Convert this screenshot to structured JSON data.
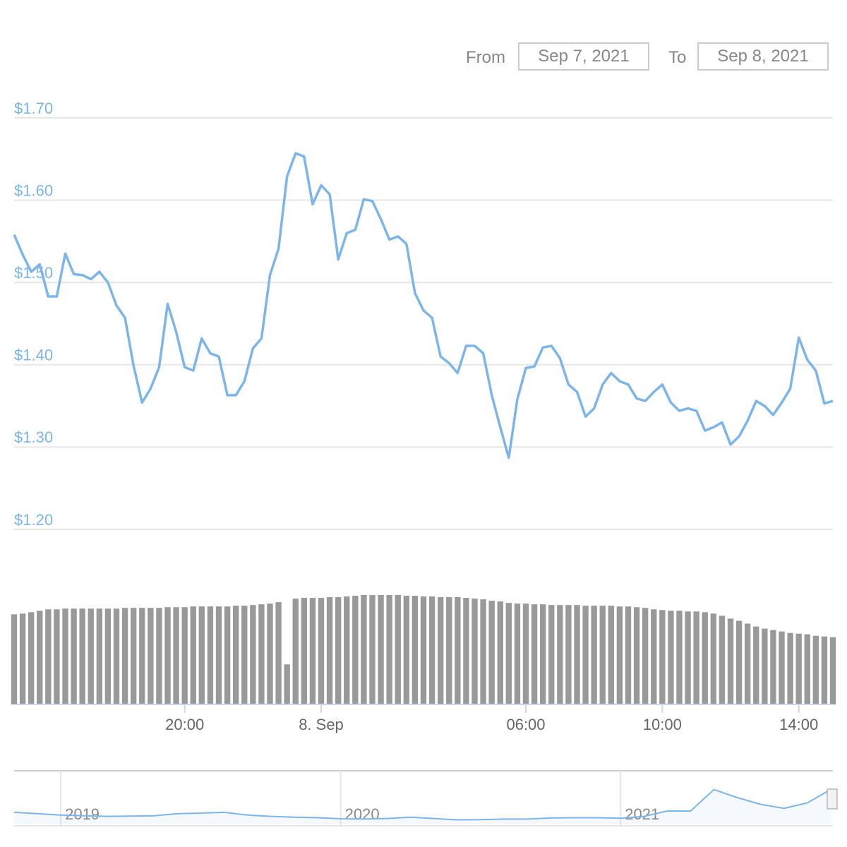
{
  "range_selector": {
    "from_label": "From",
    "from": "Sep 7, 2021",
    "to_label": "To",
    "to": "Sep 8, 2021"
  },
  "chart_data": [
    {
      "type": "line",
      "color": "#7cb5ec",
      "grid": true,
      "values": [
        1.558,
        1.534,
        1.513,
        1.522,
        1.483,
        1.483,
        1.535,
        1.51,
        1.509,
        1.504,
        1.513,
        1.5,
        1.472,
        1.457,
        1.399,
        1.354,
        1.371,
        1.397,
        1.474,
        1.44,
        1.397,
        1.393,
        1.432,
        1.414,
        1.41,
        1.363,
        1.363,
        1.38,
        1.42,
        1.432,
        1.509,
        1.541,
        1.629,
        1.657,
        1.653,
        1.595,
        1.618,
        1.607,
        1.528,
        1.56,
        1.564,
        1.601,
        1.599,
        1.577,
        1.552,
        1.556,
        1.547,
        1.487,
        1.466,
        1.457,
        1.41,
        1.402,
        1.39,
        1.423,
        1.423,
        1.414,
        1.363,
        1.324,
        1.287,
        1.358,
        1.396,
        1.398,
        1.421,
        1.423,
        1.408,
        1.376,
        1.367,
        1.337,
        1.347,
        1.376,
        1.39,
        1.38,
        1.376,
        1.359,
        1.356,
        1.367,
        1.376,
        1.354,
        1.344,
        1.347,
        1.344,
        1.32,
        1.324,
        1.33,
        1.303,
        1.313,
        1.332,
        1.356,
        1.35,
        1.339,
        1.354,
        1.371,
        1.433,
        1.406,
        1.393,
        1.353,
        1.356
      ],
      "volume": [
        126,
        127,
        129,
        131,
        133,
        133,
        134,
        134,
        134,
        134,
        134,
        134,
        134,
        135,
        135,
        135,
        135,
        135,
        136,
        136,
        136,
        137,
        137,
        137,
        137,
        137,
        138,
        138,
        139,
        140,
        141,
        143,
        56,
        148,
        149,
        149,
        149,
        150,
        150,
        151,
        152,
        153,
        153,
        153,
        153,
        153,
        152,
        152,
        151,
        151,
        150,
        150,
        150,
        149,
        148,
        147,
        145,
        144,
        142,
        141,
        141,
        140,
        140,
        139,
        139,
        139,
        139,
        138,
        138,
        138,
        138,
        137,
        137,
        136,
        135,
        133,
        132,
        131,
        131,
        130,
        130,
        129,
        127,
        124,
        120,
        117,
        113,
        109,
        106,
        104,
        102,
        100,
        99,
        98,
        96,
        95,
        94
      ],
      "volume_color": "#999999",
      "xlim": [
        0,
        96
      ],
      "xticks": [
        {
          "value": 20,
          "label": "20:00"
        },
        {
          "value": 36,
          "label": "8. Sep"
        },
        {
          "value": 60,
          "label": "06:00"
        },
        {
          "value": 76,
          "label": "10:00"
        },
        {
          "value": 92,
          "label": "14:00"
        }
      ],
      "ylim": [
        1.2,
        1.7
      ],
      "yticks": [
        {
          "value": 1.2,
          "label": "$1.20"
        },
        {
          "value": 1.3,
          "label": "$1.30"
        },
        {
          "value": 1.4,
          "label": "$1.40"
        },
        {
          "value": 1.5,
          "label": "$1.50"
        },
        {
          "value": 1.6,
          "label": "$1.60"
        },
        {
          "value": 1.7,
          "label": "$1.70"
        }
      ]
    },
    {
      "type": "navigator",
      "color": "#7cb5ec",
      "values": [
        0.45,
        0.4,
        0.35,
        0.32,
        0.3,
        0.31,
        0.32,
        0.4,
        0.42,
        0.45,
        0.35,
        0.3,
        0.27,
        0.25,
        0.21,
        0.2,
        0.22,
        0.27,
        0.22,
        0.17,
        0.18,
        0.2,
        0.2,
        0.24,
        0.25,
        0.25,
        0.23,
        0.3,
        0.5,
        0.5,
        1.3,
        1.0,
        0.75,
        0.6,
        0.8,
        1.3
      ],
      "xlim": [
        0,
        35.1
      ],
      "xticks": [
        {
          "value": 2,
          "label": "2019"
        },
        {
          "value": 14,
          "label": "2020"
        },
        {
          "value": 26,
          "label": "2021"
        }
      ],
      "ylim": [
        0,
        2
      ]
    }
  ]
}
